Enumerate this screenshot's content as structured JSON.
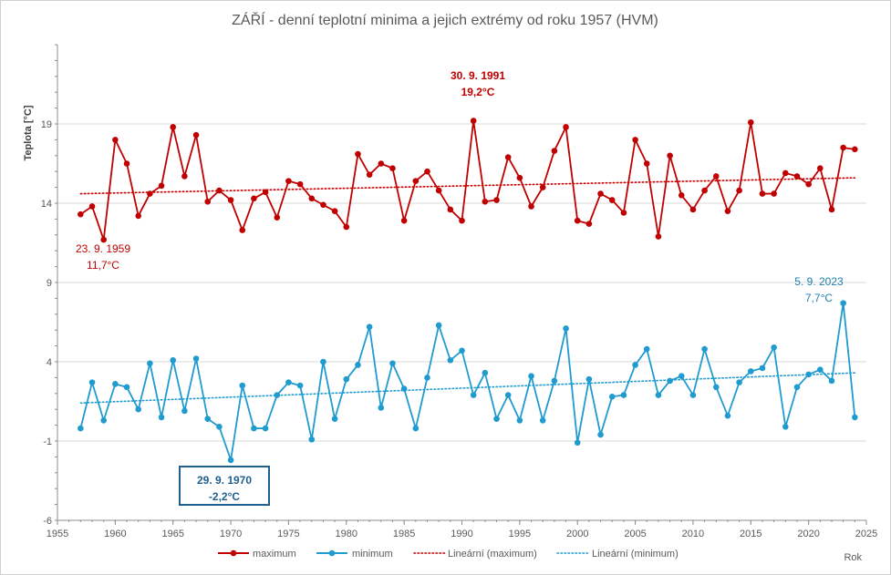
{
  "chart_data": {
    "type": "line",
    "title": "ZÁŘÍ - denní teplotní minima a jejich extrémy od roku 1957 (HVM)",
    "ylabel": "Teplota [°C]",
    "xlabel": "Rok",
    "xlim": [
      1955,
      2025
    ],
    "ylim": [
      -6,
      24
    ],
    "x_ticks": [
      "1955",
      "1960",
      "1965",
      "1970",
      "1975",
      "1980",
      "1985",
      "1990",
      "1995",
      "2000",
      "2005",
      "2010",
      "2015",
      "2020",
      "2025"
    ],
    "y_ticks": [
      "19",
      "14",
      "9",
      "4",
      "-1",
      "-6"
    ],
    "x": [
      1957,
      1958,
      1959,
      1960,
      1961,
      1962,
      1963,
      1964,
      1965,
      1966,
      1967,
      1968,
      1969,
      1970,
      1971,
      1972,
      1973,
      1974,
      1975,
      1976,
      1977,
      1978,
      1979,
      1980,
      1981,
      1982,
      1983,
      1984,
      1985,
      1986,
      1987,
      1988,
      1989,
      1990,
      1991,
      1992,
      1993,
      1994,
      1995,
      1996,
      1997,
      1998,
      1999,
      2000,
      2001,
      2002,
      2003,
      2004,
      2005,
      2006,
      2007,
      2008,
      2009,
      2010,
      2011,
      2012,
      2013,
      2014,
      2015,
      2016,
      2017,
      2018,
      2019,
      2020,
      2021,
      2022,
      2023,
      2024
    ],
    "series": [
      {
        "name": "maximum",
        "color": "#c00000",
        "values": [
          13.3,
          13.8,
          11.7,
          18.0,
          16.5,
          13.2,
          14.6,
          15.1,
          18.8,
          15.7,
          18.3,
          14.1,
          14.8,
          14.2,
          12.3,
          14.3,
          14.7,
          13.1,
          15.4,
          15.2,
          14.3,
          13.9,
          13.5,
          12.5,
          17.1,
          15.8,
          16.5,
          16.2,
          12.9,
          15.4,
          16.0,
          14.8,
          13.6,
          12.9,
          19.2,
          14.1,
          14.2,
          16.9,
          15.6,
          13.8,
          15.0,
          17.3,
          18.8,
          12.9,
          12.7,
          14.6,
          14.2,
          13.4,
          18.0,
          16.5,
          11.9,
          17.0,
          14.5,
          13.6,
          14.8,
          15.7,
          13.5,
          14.8,
          19.1,
          14.6,
          14.6,
          15.9,
          15.7,
          15.2,
          16.2,
          13.6,
          17.5,
          17.4
        ]
      },
      {
        "name": "minimum",
        "color": "#1f9bcf",
        "values": [
          -0.2,
          2.7,
          0.3,
          2.6,
          2.4,
          1.0,
          3.9,
          0.5,
          4.1,
          0.9,
          4.2,
          0.4,
          -0.1,
          -2.2,
          2.5,
          -0.2,
          -0.2,
          1.9,
          2.7,
          2.5,
          -0.9,
          4.0,
          0.4,
          2.9,
          3.8,
          6.2,
          1.1,
          3.9,
          2.3,
          -0.2,
          3.0,
          6.3,
          4.1,
          4.7,
          1.9,
          3.3,
          0.4,
          1.9,
          0.3,
          3.1,
          0.3,
          2.8,
          6.1,
          -1.1,
          2.9,
          -0.6,
          1.8,
          1.9,
          3.8,
          4.8,
          1.9,
          2.8,
          3.1,
          1.9,
          4.8,
          2.4,
          0.6,
          2.7,
          3.4,
          3.6,
          4.9,
          -0.1,
          2.4,
          3.2,
          3.5,
          2.8,
          7.7,
          0.5
        ]
      }
    ],
    "trendlines": [
      {
        "name": "Lineární (maximum)",
        "color": "#c00000",
        "start": [
          1957,
          14.6
        ],
        "end": [
          2024,
          15.6
        ]
      },
      {
        "name": "Lineární (minimum)",
        "color": "#1f9bcf",
        "start": [
          1957,
          1.4
        ],
        "end": [
          2024,
          3.3
        ]
      }
    ],
    "annotations": [
      {
        "id": "ann-max-high",
        "lines": [
          "30. 9. 1991",
          "19,2°C"
        ],
        "color": "#c00000",
        "bold": true,
        "boxed": false
      },
      {
        "id": "ann-max-low",
        "lines": [
          "23. 9. 1959",
          "11,7°C"
        ],
        "color": "#c00000",
        "bold": false,
        "boxed": false
      },
      {
        "id": "ann-min-high",
        "lines": [
          "5. 9. 2023",
          "7,7°C"
        ],
        "color": "#1f7fb0",
        "bold": false,
        "boxed": false
      },
      {
        "id": "ann-min-low",
        "lines": [
          "29. 9. 1970",
          "-2,2°C"
        ],
        "color": "#1f5f8f",
        "bold": true,
        "boxed": true
      }
    ],
    "legend": {
      "position": "bottom",
      "items": [
        {
          "label": "maximum",
          "color": "#c00000",
          "style": "line-marker"
        },
        {
          "label": "minimum",
          "color": "#1f9bcf",
          "style": "line-marker"
        },
        {
          "label": "Lineární (maximum)",
          "color": "#c00000",
          "style": "dotted"
        },
        {
          "label": "Lineární (minimum)",
          "color": "#1f9bcf",
          "style": "dotted"
        }
      ]
    },
    "grid": {
      "horizontal": true,
      "vertical": false
    }
  }
}
